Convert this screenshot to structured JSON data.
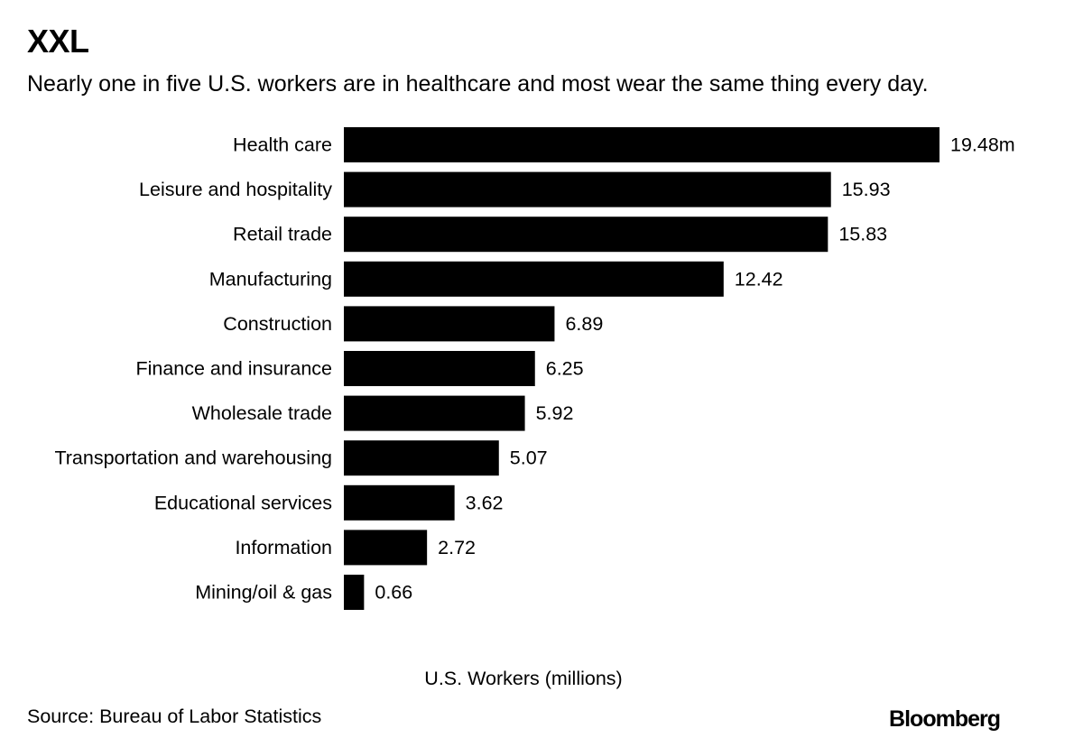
{
  "header": {
    "title": "XXL",
    "subtitle": "Nearly one in five U.S. workers are in healthcare and most wear the same thing every day."
  },
  "footer": {
    "source": "Source: Bureau of Labor Statistics",
    "brand": "Bloomberg"
  },
  "colors": {
    "bar": "#000000",
    "text": "#000000",
    "background": "#ffffff"
  },
  "chart_data": {
    "type": "bar",
    "orientation": "horizontal",
    "title": "XXL",
    "subtitle": "Nearly one in five U.S. workers are in healthcare and most wear the same thing every day.",
    "xlabel": "U.S. Workers (millions)",
    "ylabel": "",
    "categories": [
      "Health care",
      "Leisure and hospitality",
      "Retail trade",
      "Manufacturing",
      "Construction",
      "Finance and insurance",
      "Wholesale trade",
      "Transportation and warehousing",
      "Educational services",
      "Information",
      "Mining/oil & gas"
    ],
    "values": [
      19.48,
      15.93,
      15.83,
      12.42,
      6.89,
      6.25,
      5.92,
      5.07,
      3.62,
      2.72,
      0.66
    ],
    "value_labels": [
      "19.48m",
      "15.93",
      "15.83",
      "12.42",
      "6.89",
      "6.25",
      "5.92",
      "5.07",
      "3.62",
      "2.72",
      "0.66"
    ],
    "xlim": [
      0,
      19.48
    ],
    "grid": false,
    "legend": "none"
  }
}
